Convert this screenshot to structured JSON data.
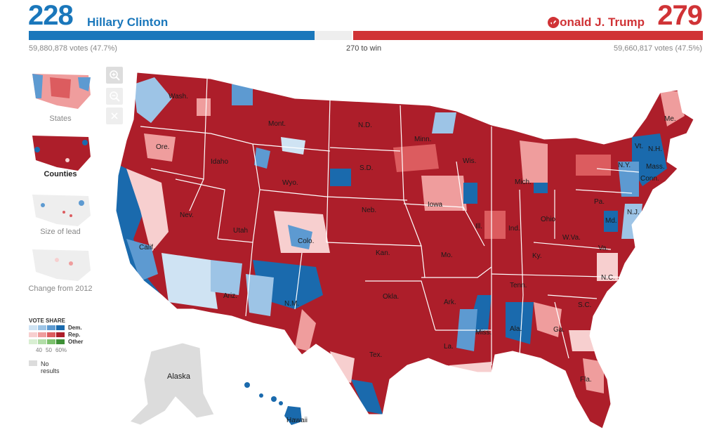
{
  "header": {
    "dem_electoral": "228",
    "dem_name": "Hillary Clinton",
    "rep_electoral": "279",
    "rep_name": "Donald J. Trump",
    "dem_votes": "59,880,878 votes (47.7%)",
    "rep_votes": "59,660,817 votes (47.5%)",
    "threshold": "270 to win",
    "dem_share_of_538": 0.4238,
    "rep_share_of_538": 0.5186,
    "colors": {
      "dem": "#1a77bb",
      "rep": "#d03336",
      "bar_bg": "#eeeeee"
    }
  },
  "map_views": [
    {
      "label": "States",
      "selected": false
    },
    {
      "label": "Counties",
      "selected": true
    },
    {
      "label": "Size of lead",
      "selected": false
    },
    {
      "label": "Change from 2012",
      "selected": false
    }
  ],
  "zoom_controls": [
    {
      "icon": "zoom-in-icon"
    },
    {
      "icon": "zoom-out-icon"
    },
    {
      "icon": "close-icon"
    }
  ],
  "legend": {
    "title": "VOTE SHARE",
    "rows": [
      {
        "label": "Dem.",
        "colors": [
          "#cfe3f3",
          "#9dc4e6",
          "#5d9ad1",
          "#1a6aad"
        ]
      },
      {
        "label": "Rep.",
        "colors": [
          "#f7cfcf",
          "#ef9d9d",
          "#dc5c5f",
          "#ad1e2a"
        ]
      },
      {
        "label": "Other",
        "colors": [
          "#d9efd3",
          "#b2dda8",
          "#7cc06d",
          "#3d8f36"
        ]
      }
    ],
    "ticks": [
      "40",
      "50",
      "60%"
    ],
    "no_results": "No results"
  },
  "state_labels": [
    "Wash.",
    "Ore.",
    "Calif.",
    "Nev.",
    "Idaho",
    "Mont.",
    "Wyo.",
    "Utah",
    "Ariz.",
    "Colo.",
    "N.M.",
    "N.D.",
    "S.D.",
    "Neb.",
    "Kan.",
    "Okla.",
    "Tex.",
    "Minn.",
    "Iowa",
    "Mo.",
    "Ark.",
    "La.",
    "Wis.",
    "Ill.",
    "Mich.",
    "Ind.",
    "Ohio",
    "Ky.",
    "Tenn.",
    "Miss.",
    "Ala.",
    "Ga.",
    "Fla.",
    "S.C.",
    "N.C.",
    "Va.",
    "W.Va.",
    "Pa.",
    "N.Y.",
    "Vt.",
    "N.H.",
    "Me.",
    "Mass.",
    "Conn.",
    "N.J.",
    "Md.",
    "Alaska",
    "Hawaii"
  ],
  "base_colors": {
    "rep_dark": "#ad1e2a",
    "dem_dark": "#1a6aad",
    "no_results": "#dcdcdc"
  }
}
